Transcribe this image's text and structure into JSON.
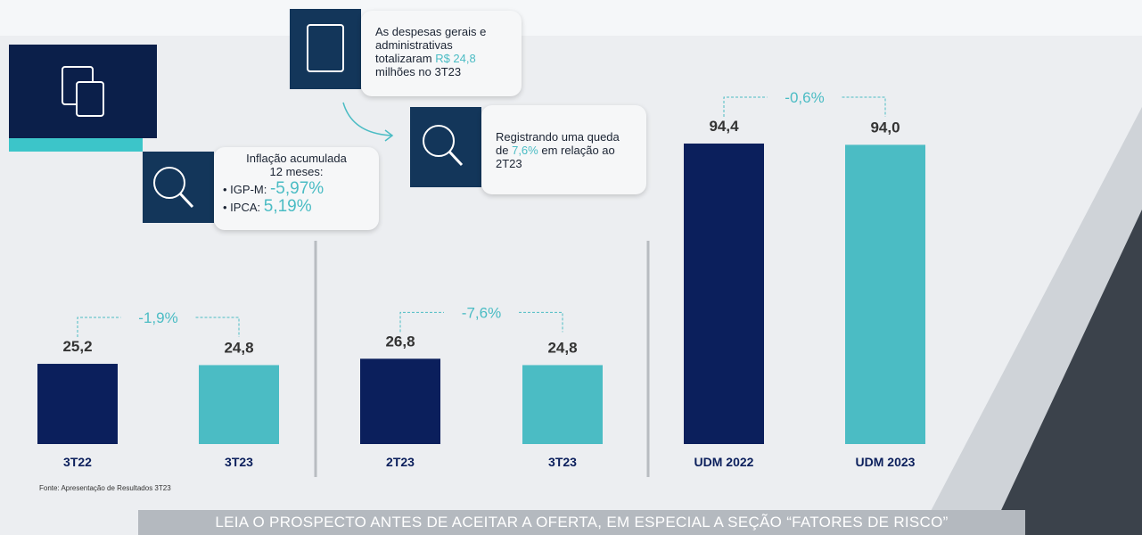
{
  "chart_data": [
    {
      "type": "bar",
      "categories": [
        "3T22",
        "3T23"
      ],
      "values": [
        25.2,
        24.8
      ],
      "value_labels": [
        "25,2",
        "24,8"
      ],
      "colors": [
        "#0b1f5c",
        "#4bbcc4"
      ],
      "change": "-1,9%"
    },
    {
      "type": "bar",
      "categories": [
        "2T23",
        "3T23"
      ],
      "values": [
        26.8,
        24.8
      ],
      "value_labels": [
        "26,8",
        "24,8"
      ],
      "colors": [
        "#0b1f5c",
        "#4bbcc4"
      ],
      "change": "-7,6%"
    },
    {
      "type": "bar",
      "categories": [
        "UDM 2022",
        "UDM 2023"
      ],
      "values": [
        94.4,
        94.0
      ],
      "value_labels": [
        "94,4",
        "94,0"
      ],
      "colors": [
        "#0b1f5c",
        "#4bbcc4"
      ],
      "change": "-0,6%"
    }
  ],
  "callouts": {
    "expenses": {
      "parts": [
        "As despesas gerais e administrativas totalizaram",
        "R$ 24,8",
        "milhões no 3T23"
      ]
    },
    "decline": {
      "parts": [
        "Registrando uma queda de",
        "7,6%",
        "em relação ao 2T23"
      ]
    },
    "inflation": {
      "title": "Inflação acumulada 12 meses:",
      "items": [
        {
          "label": "IGP-M:",
          "value": "-5,97%"
        },
        {
          "label": "IPCA:",
          "value": "5,19%"
        }
      ]
    }
  },
  "source": "Fonte: Apresentação de Resultados 3T23",
  "banner": "LEIA O PROSPECTO ANTES DE ACEITAR A OFERTA, EM ESPECIAL A SEÇÃO “FATORES DE RISCO”"
}
